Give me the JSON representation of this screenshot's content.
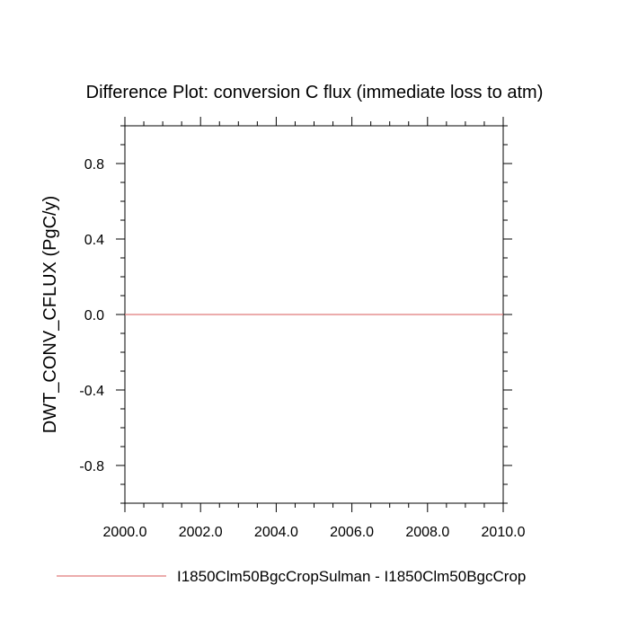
{
  "chart_data": {
    "type": "line",
    "title": "Difference Plot: conversion C flux (immediate loss to atm)",
    "xlabel": "",
    "ylabel": "DWT_CONV_CFLUX  (PgC/y)",
    "xlim": [
      2000.0,
      2010.0
    ],
    "ylim": [
      -1.0,
      1.0
    ],
    "x_ticks": [
      2000.0,
      2002.0,
      2004.0,
      2006.0,
      2008.0,
      2010.0
    ],
    "x_tick_labels": [
      "2000.0",
      "2002.0",
      "2004.0",
      "2006.0",
      "2008.0",
      "2010.0"
    ],
    "y_ticks": [
      0.8,
      0.4,
      0.0,
      -0.4,
      -0.8
    ],
    "y_tick_labels": [
      "0.8",
      "0.4",
      "0.0",
      "-0.4",
      "-0.8"
    ],
    "grid": false,
    "legend_position": "bottom",
    "series": [
      {
        "name": "I1850Clm50BgcCropSulman - I1850Clm50BgcCrop",
        "color": "#e07a7a",
        "x": [
          2000.0,
          2001.0,
          2002.0,
          2003.0,
          2004.0,
          2005.0,
          2006.0,
          2007.0,
          2008.0,
          2009.0,
          2010.0
        ],
        "values": [
          0.0,
          0.0,
          0.0,
          0.0,
          0.0,
          0.0,
          0.0,
          0.0,
          0.0,
          0.0,
          0.0
        ]
      }
    ]
  }
}
